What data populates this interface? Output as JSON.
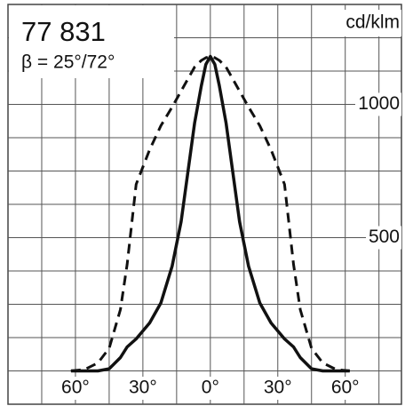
{
  "chart_data": {
    "type": "line",
    "title": "77 831",
    "subtitle": "β = 25°/72°",
    "y_unit": "cd/klm",
    "x": [
      -62,
      -56,
      -50,
      -45,
      -40,
      -37,
      -33,
      -27,
      -22,
      -17,
      -13,
      -10,
      -7,
      -4,
      -2,
      0,
      2,
      4,
      7,
      10,
      13,
      17,
      22,
      27,
      33,
      37,
      40,
      45,
      50,
      56,
      62
    ],
    "series": [
      {
        "name": "25°",
        "color": "#111111",
        "dash": false,
        "values": [
          0,
          0,
          0,
          8,
          50,
          90,
          120,
          180,
          255,
          393,
          560,
          745,
          930,
          1070,
          1150,
          1180,
          1150,
          1070,
          930,
          745,
          560,
          393,
          255,
          180,
          120,
          90,
          50,
          8,
          0,
          0,
          0
        ]
      },
      {
        "name": "72°",
        "color": "#111111",
        "dash": true,
        "values": [
          0,
          5,
          30,
          85,
          230,
          400,
          700,
          830,
          920,
          990,
          1050,
          1095,
          1140,
          1165,
          1175,
          1180,
          1175,
          1165,
          1140,
          1095,
          1050,
          990,
          920,
          830,
          700,
          400,
          230,
          85,
          30,
          5,
          0
        ]
      }
    ],
    "xlim": [
      -90,
      85
    ],
    "ylim": [
      -125,
      1375
    ],
    "xticks": [
      {
        "value": -60,
        "label": "60°"
      },
      {
        "value": -30,
        "label": "30°"
      },
      {
        "value": 0,
        "label": "0°"
      },
      {
        "value": 30,
        "label": "30°"
      },
      {
        "value": 60,
        "label": "60°"
      }
    ],
    "yticks": [
      500,
      1000
    ],
    "xgrid": [
      -75,
      -60,
      -45,
      -30,
      -15,
      0,
      15,
      30,
      45,
      60,
      75
    ],
    "ygrid": [
      0,
      125,
      250,
      375,
      500,
      625,
      750,
      875,
      1000,
      1125,
      1250
    ],
    "grid": true
  }
}
